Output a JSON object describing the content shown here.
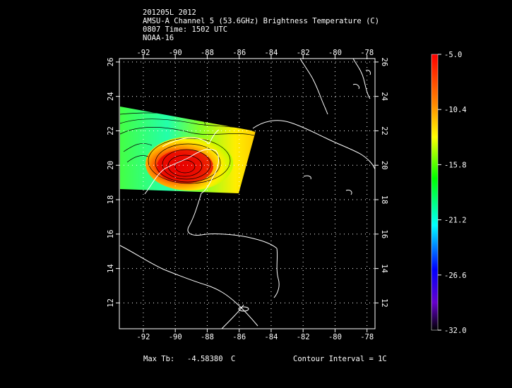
{
  "header": {
    "line1": "201205L 2012",
    "line2": "AMSU-A Channel 5 (53.6GHz) Brightness Temperature (C)",
    "line3": "0807 Time: 1502 UTC",
    "line4": "NOAA-16"
  },
  "map": {
    "lon_ticks": [
      "-92",
      "-90",
      "-88",
      "-86",
      "-84",
      "-82",
      "-80",
      "-78"
    ],
    "lat_ticks": [
      "12",
      "14",
      "16",
      "18",
      "20",
      "22",
      "24",
      "26"
    ],
    "lon_range": [
      -93.5,
      -77.5
    ],
    "lat_range": [
      10.5,
      26.2
    ]
  },
  "colorbar": {
    "labels": [
      "-5.0",
      "-10.4",
      "-15.8",
      "-21.2",
      "-26.6",
      "-32.0"
    ],
    "colors": [
      "#ff0000",
      "#ff8800",
      "#ffff00",
      "#00ff00",
      "#00ffff",
      "#0000ff",
      "#6600cc",
      "#000000"
    ]
  },
  "footer": {
    "max_label": "Max Tb:",
    "max_value": "-4.58380",
    "max_unit": "C",
    "contour": "Contour Interval = 1C"
  }
}
